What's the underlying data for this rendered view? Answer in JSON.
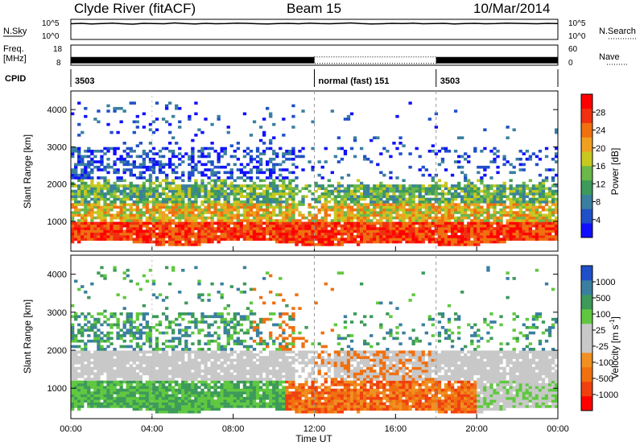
{
  "header": {
    "station": "Clyde River (fitACF)",
    "beam": "Beam 15",
    "date": "10/Mar/2014"
  },
  "top_panels": {
    "nsky_label": "N.Sky",
    "nsky_ticks": [
      "10^5",
      "10^0"
    ],
    "nsearch_label": "N.Search",
    "nsearch_ticks": [
      "10^5",
      "10^0"
    ],
    "freq_label": "Freq.",
    "freq_unit": "[MHz]",
    "freq_ticks": [
      "18",
      "8"
    ],
    "nave_label": "Nave",
    "nave_ticks": [
      "60",
      "0"
    ],
    "cpid_label": "CPID",
    "cpid_segments": [
      {
        "start_hour": 0,
        "end_hour": 12,
        "text": "3503"
      },
      {
        "start_hour": 12,
        "end_hour": 18,
        "text": "normal (fast) 151"
      },
      {
        "start_hour": 18,
        "end_hour": 24,
        "text": "3503"
      }
    ],
    "nsky_trace": [
      78,
      80,
      77,
      79,
      81,
      78,
      76,
      80,
      79,
      78,
      82,
      79,
      77,
      80,
      78,
      79,
      81,
      80,
      78,
      77,
      79,
      80,
      78,
      81,
      79,
      78,
      80,
      82,
      79,
      77,
      78,
      80,
      79,
      81,
      78,
      79,
      80,
      77,
      79,
      80,
      78,
      79,
      81,
      80,
      79,
      78,
      80,
      79
    ],
    "freq_mhz": 10.5,
    "nave_fast_window": [
      12,
      18
    ]
  },
  "colors": {
    "power_scale": [
      "#1010ff",
      "#2050c8",
      "#3a7fa0",
      "#3d9a5a",
      "#6ab84a",
      "#c8c820",
      "#f0a020",
      "#f07010",
      "#f03010",
      "#ff0000"
    ],
    "velocity_scale": [
      "#ff0000",
      "#f04010",
      "#f07010",
      "#f09020",
      "#c8c8c8",
      "#c8c8c8",
      "#60c840",
      "#3d9a5a",
      "#3a7fa0",
      "#2050c8"
    ]
  },
  "chart_data": [
    {
      "type": "heatmap",
      "title": "",
      "xlabel": "Time UT",
      "ylabel": "Slant Range [km]",
      "x_ticks": [
        "00:00",
        "04:00",
        "08:00",
        "12:00",
        "16:00",
        "20:00",
        "00:00"
      ],
      "xlim": [
        0,
        24
      ],
      "y_ticks": [
        "1000",
        "2000",
        "3000",
        "4000"
      ],
      "ylim": [
        200,
        4500
      ],
      "colorbar": {
        "label": "Power [dB]",
        "ticks": [
          "28",
          "24",
          "20",
          "16",
          "12",
          "8",
          "4"
        ],
        "range": [
          0,
          30
        ]
      },
      "bands": [
        {
          "name": "near",
          "ranges_km": [
            [
              400,
              1000
            ]
          ],
          "dominant": "high power (20-30 dB)",
          "time_span": [
            0,
            24
          ]
        },
        {
          "name": "mid",
          "ranges_km": [
            [
              1000,
              2000
            ]
          ],
          "dominant": "medium power (8-20 dB)",
          "time_span": [
            0,
            24
          ]
        },
        {
          "name": "far",
          "ranges_km": [
            [
              2000,
              4000
            ]
          ],
          "dominant": "low power (0-8 dB), sparse",
          "time_span": [
            0,
            11
          ]
        }
      ]
    },
    {
      "type": "heatmap",
      "title": "",
      "xlabel": "Time UT",
      "ylabel": "Slant Range [km]",
      "x_ticks": [
        "00:00",
        "04:00",
        "08:00",
        "12:00",
        "16:00",
        "20:00",
        "00:00"
      ],
      "xlim": [
        0,
        24
      ],
      "y_ticks": [
        "1000",
        "2000",
        "3000",
        "4000"
      ],
      "ylim": [
        200,
        4500
      ],
      "colorbar": {
        "label": "Velocity [m s",
        "label_sup": "-1",
        "label_close": "]",
        "ticks": [
          "1000",
          "500",
          "100",
          "25",
          "-25",
          "-100",
          "-500",
          "-1000"
        ],
        "range": [
          -1000,
          1000
        ]
      },
      "bands": [
        {
          "name": "near-early",
          "ranges_km": [
            [
              500,
              1200
            ]
          ],
          "dominant": "positive velocity (green, 100-500 m/s)",
          "time_span": [
            0,
            11
          ]
        },
        {
          "name": "near-late",
          "ranges_km": [
            [
              500,
              1000
            ]
          ],
          "dominant": "negative velocity (orange, -100 to -500 m/s)",
          "time_span": [
            11,
            20
          ]
        },
        {
          "name": "mid",
          "ranges_km": [
            [
              1200,
              2000
            ]
          ],
          "dominant": "near zero (grey, -25 to 25 m/s)",
          "time_span": [
            0,
            24
          ]
        },
        {
          "name": "far",
          "ranges_km": [
            [
              2000,
              3000
            ]
          ],
          "dominant": "positive velocity, sparse",
          "time_span": [
            0,
            6
          ]
        }
      ]
    }
  ]
}
